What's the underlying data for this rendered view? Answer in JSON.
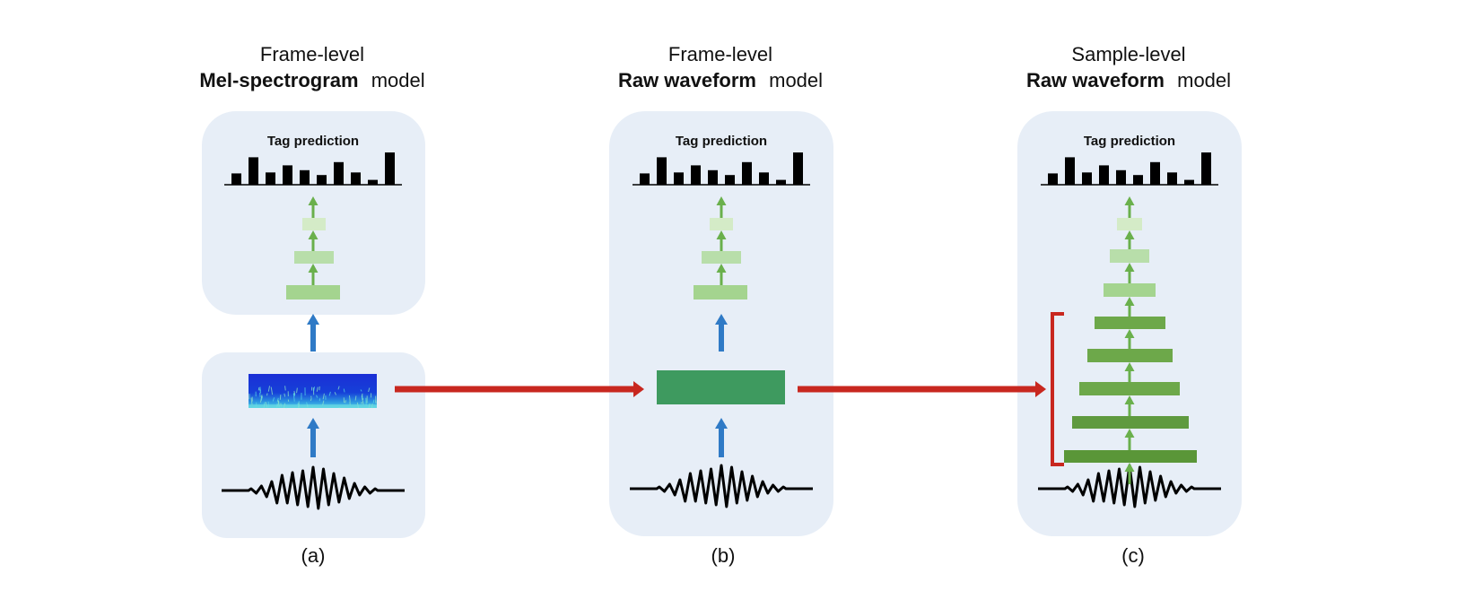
{
  "panels": [
    {
      "title_line1": "Frame-level",
      "title_bold": "Mel-spectrogram",
      "title_rest": "model",
      "tag_label": "Tag prediction",
      "caption": "(a)"
    },
    {
      "title_line1": "Frame-level",
      "title_bold": "Raw waveform",
      "title_rest": "model",
      "tag_label": "Tag prediction",
      "caption": "(b)"
    },
    {
      "title_line1": "Sample-level",
      "title_bold": "Raw waveform",
      "title_rest": "model",
      "tag_label": "Tag prediction",
      "caption": "(c)"
    }
  ],
  "tag_bar_levels": [
    0.35,
    0.85,
    0.38,
    0.6,
    0.45,
    0.3,
    0.7,
    0.38,
    0.15,
    1.0
  ],
  "colors": {
    "panel_bg": "#e7eef7",
    "blue_arrow": "#2f7ac6",
    "red_arrow": "#c8271f",
    "green_arrow": "#6ab04c",
    "dense_layer_light": "#d4ebc7",
    "dense_layer_mid": "#b8deaa",
    "dense_layer_dark": "#a4d48f",
    "conv_layer": "#6da84a",
    "frame_conv_block": "#3e9a5f",
    "waveform": "#000000"
  },
  "icons": {
    "spectrogram": "mel-spectrogram-image",
    "waveform": "audio-waveform-icon"
  }
}
